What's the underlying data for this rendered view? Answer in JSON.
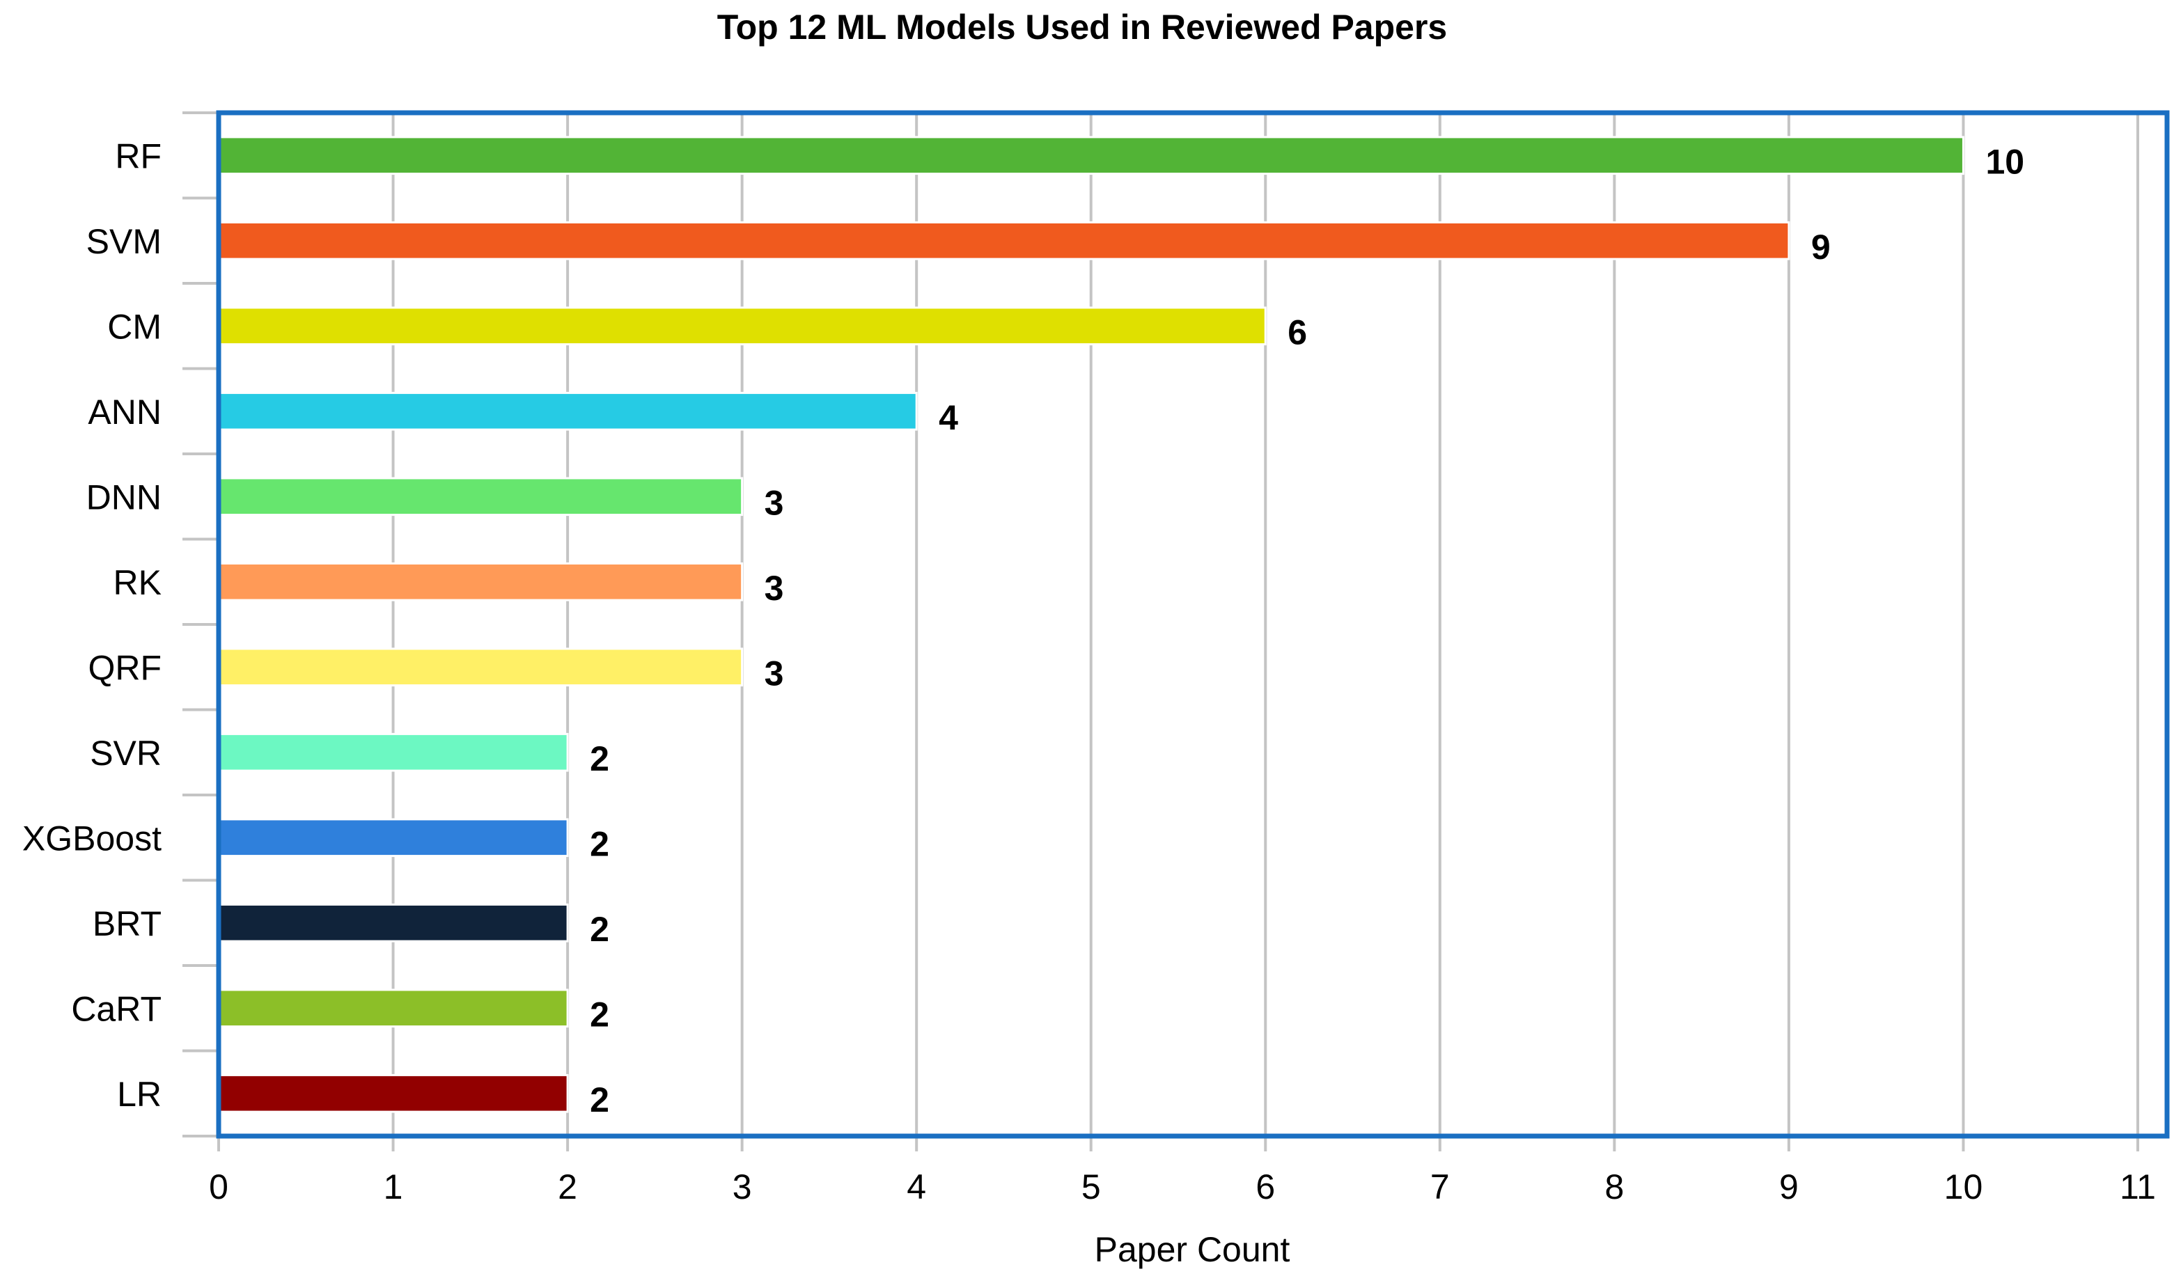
{
  "chart_data": {
    "type": "bar",
    "orientation": "horizontal",
    "title": "Top 12 ML Models Used in Reviewed Papers",
    "xlabel": "Paper Count",
    "ylabel": "",
    "xlim": [
      0,
      11
    ],
    "x_ticks": [
      "0",
      "1",
      "2",
      "3",
      "4",
      "5",
      "6",
      "7",
      "8",
      "9",
      "10",
      "11"
    ],
    "grid": "vertical",
    "legend": "none",
    "frame_color": "#1a6fc2",
    "grid_color": "#c4c4c4",
    "categories": [
      "RF",
      "SVM",
      "CM",
      "ANN",
      "DNN",
      "RK",
      "QRF",
      "SVR",
      "XGBoost",
      "BRT",
      "CaRT",
      "LR"
    ],
    "values": [
      10,
      9,
      6,
      4,
      3,
      3,
      3,
      2,
      2,
      2,
      2,
      2
    ],
    "data_labels": [
      "10",
      "9",
      "6",
      "4",
      "3",
      "3",
      "3",
      "2",
      "2",
      "2",
      "2",
      "2"
    ],
    "colors": [
      "#52b436",
      "#f05a1e",
      "#dfe000",
      "#26cbe4",
      "#66e66e",
      "#ff9a57",
      "#fff066",
      "#6cf8c2",
      "#2f80dc",
      "#10233a",
      "#8cbf28",
      "#920000"
    ]
  }
}
